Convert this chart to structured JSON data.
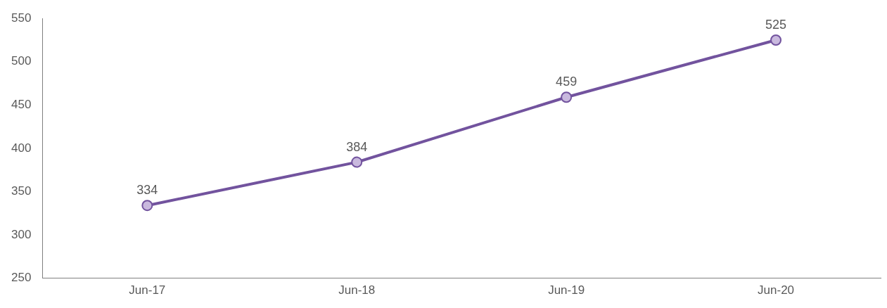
{
  "chart_data": {
    "type": "line",
    "categories": [
      "Jun-17",
      "Jun-18",
      "Jun-19",
      "Jun-20"
    ],
    "series": [
      {
        "color": "#72539e",
        "values": [
          334,
          384,
          459,
          525
        ]
      }
    ],
    "ylim": [
      250,
      550
    ],
    "yticks": [
      250,
      300,
      350,
      400,
      450,
      500,
      550
    ],
    "grid": false,
    "legend": false,
    "marker": "circle",
    "line_style": "solid",
    "data_labels": true
  }
}
